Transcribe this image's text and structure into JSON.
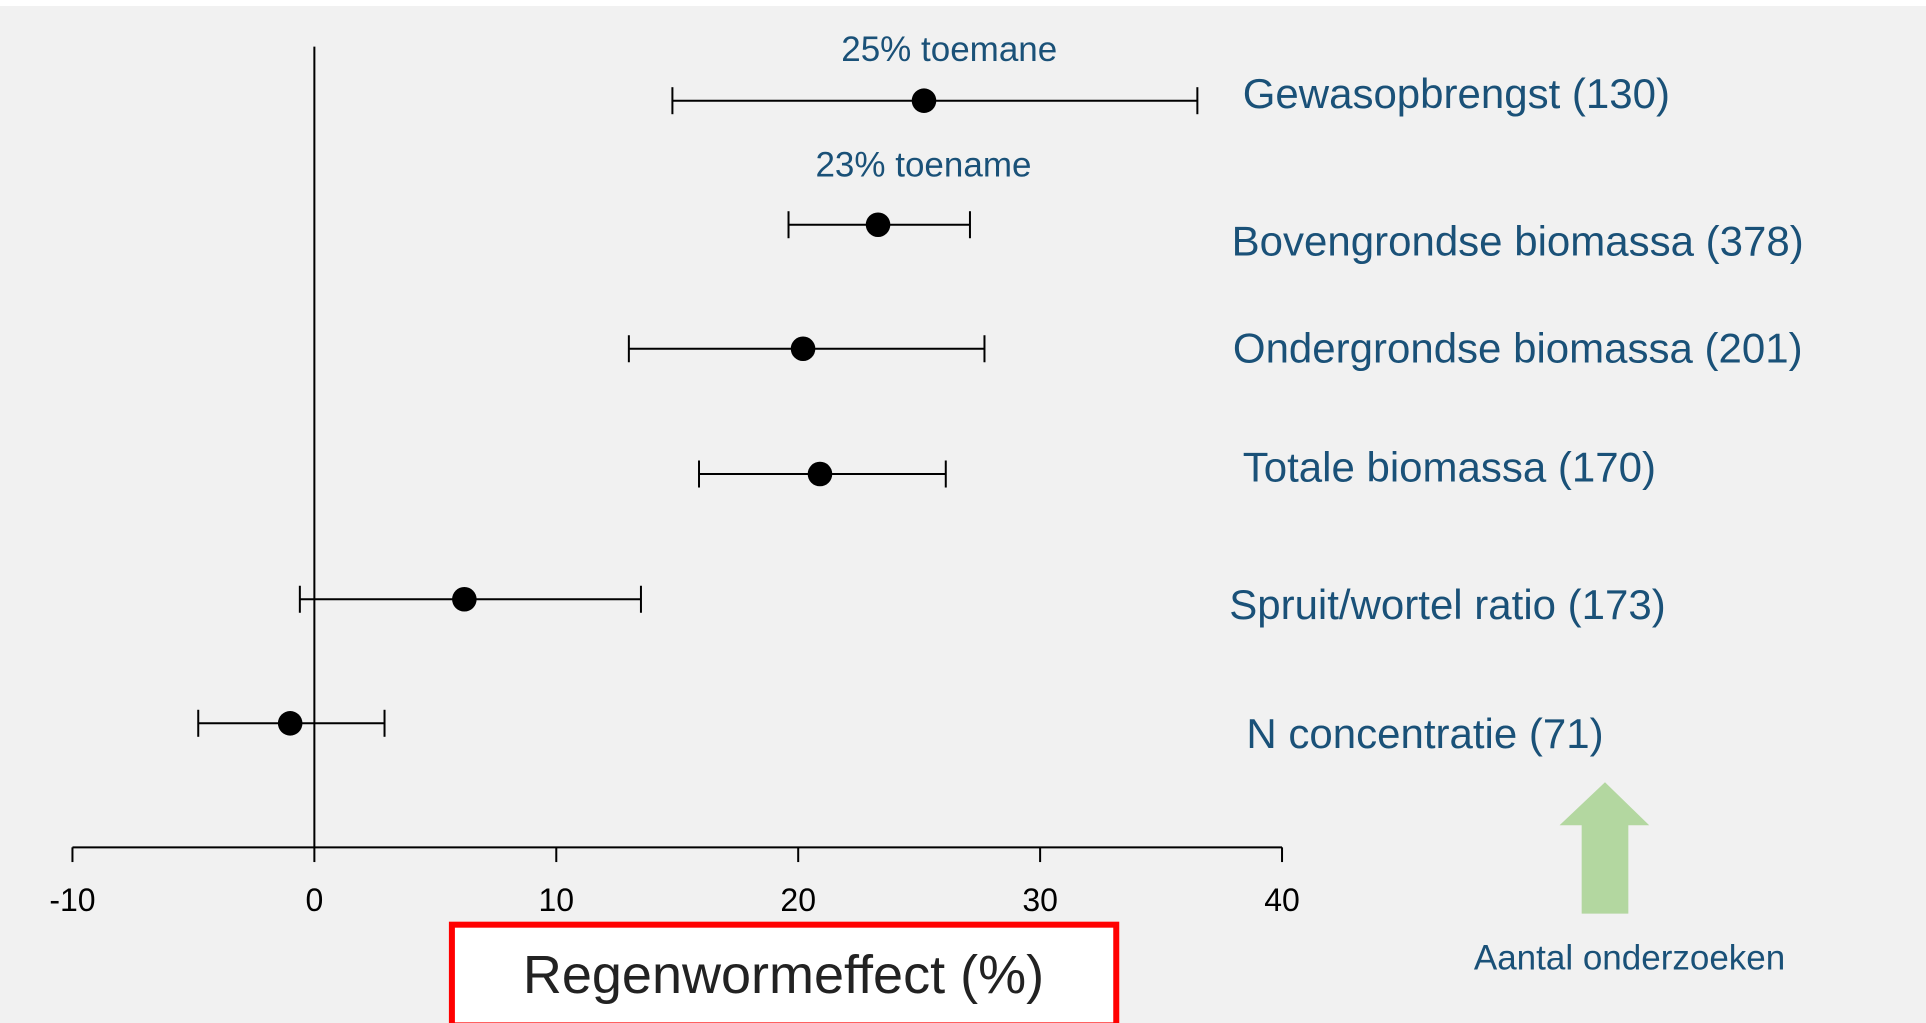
{
  "chart_data": {
    "type": "forest",
    "categories": [
      "Gewasopbrengst (130)",
      "Bovengrondse biomassa (378)",
      "Ondergrondse biomassa (201)",
      "Totale biomassa (170)",
      "Spruit/wortel ratio (173)",
      "N concentratie (71)"
    ],
    "values": [
      25.2,
      23.3,
      20.2,
      20.9,
      6.2,
      -1.0
    ],
    "lower": [
      14.8,
      19.6,
      13.0,
      15.9,
      -0.6,
      -4.8
    ],
    "upper": [
      36.5,
      27.1,
      27.7,
      26.1,
      13.5,
      2.9
    ],
    "annotations": [
      "25% toemane",
      "23% toename"
    ],
    "xlabel": "Regenwormeffect (%)",
    "xlim": [
      -10,
      40
    ],
    "xticks": [
      -10,
      0,
      10,
      20,
      30,
      40
    ],
    "arrow_label": "Aantal onderzoeken",
    "color": "#000000",
    "label_color": "#1a5178",
    "arrow_color": "#b3d7a0"
  }
}
